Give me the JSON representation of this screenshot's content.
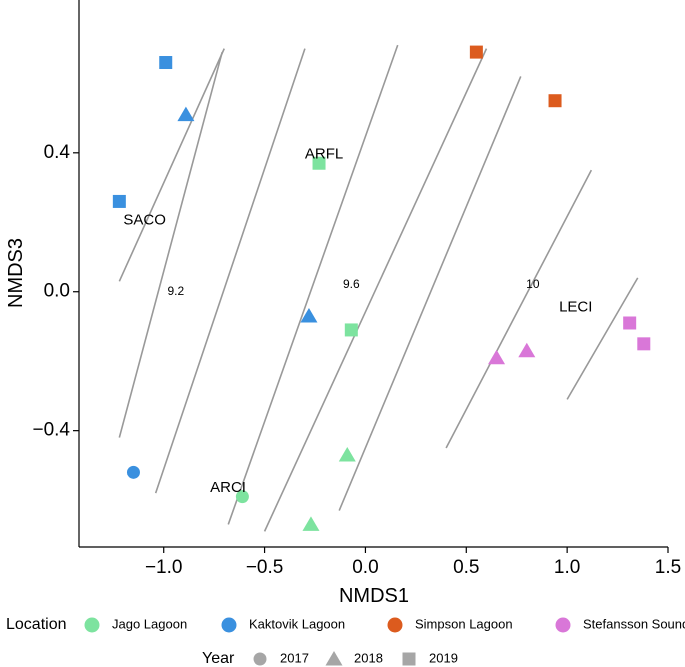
{
  "chart_data": {
    "type": "scatter",
    "xlabel": "NMDS1",
    "ylabel": "NMDS3",
    "xlim": [
      -1.42,
      1.5
    ],
    "ylim": [
      -0.735,
      0.84
    ],
    "x_ticks": [
      -1.0,
      -0.5,
      0.0,
      0.5,
      1.0,
      1.5
    ],
    "x_tick_labels": [
      "−1.0",
      "−0.5",
      "0.0",
      "0.5",
      "1.0",
      "1.5"
    ],
    "y_ticks": [
      0.4,
      0.0,
      -0.4
    ],
    "y_tick_labels": [
      "0.4",
      "0.0",
      "−0.4"
    ],
    "grid": false,
    "colors": {
      "Jago Lagoon": "#7de39f",
      "Kaktovik Lagoon": "#3a90df",
      "Simpson Lagoon": "#dc5b1e",
      "Stefansson Sound": "#d977d8",
      "contour": "#999999",
      "neutral": "#a6a6a6"
    },
    "points": [
      {
        "location": "Kaktovik Lagoon",
        "year": "2019",
        "x": -0.99,
        "y": 0.66
      },
      {
        "location": "Kaktovik Lagoon",
        "year": "2018",
        "x": -0.89,
        "y": 0.51
      },
      {
        "location": "Kaktovik Lagoon",
        "year": "2019",
        "x": -1.22,
        "y": 0.26
      },
      {
        "location": "Kaktovik Lagoon",
        "year": "2018",
        "x": -0.28,
        "y": -0.07
      },
      {
        "location": "Kaktovik Lagoon",
        "year": "2017",
        "x": -1.15,
        "y": -0.52
      },
      {
        "location": "Jago Lagoon",
        "year": "2019",
        "x": -0.23,
        "y": 0.37
      },
      {
        "location": "Jago Lagoon",
        "year": "2019",
        "x": -0.07,
        "y": -0.11
      },
      {
        "location": "Jago Lagoon",
        "year": "2018",
        "x": -0.09,
        "y": -0.47
      },
      {
        "location": "Jago Lagoon",
        "year": "2017",
        "x": -0.61,
        "y": -0.59
      },
      {
        "location": "Jago Lagoon",
        "year": "2018",
        "x": -0.27,
        "y": -0.67
      },
      {
        "location": "Simpson Lagoon",
        "year": "2019",
        "x": 0.55,
        "y": 0.69
      },
      {
        "location": "Simpson Lagoon",
        "year": "2019",
        "x": 0.94,
        "y": 0.55
      },
      {
        "location": "Stefansson Sound",
        "year": "2019",
        "x": 1.31,
        "y": -0.09
      },
      {
        "location": "Stefansson Sound",
        "year": "2019",
        "x": 1.38,
        "y": -0.15
      },
      {
        "location": "Stefansson Sound",
        "year": "2018",
        "x": 0.65,
        "y": -0.19
      },
      {
        "location": "Stefansson Sound",
        "year": "2018",
        "x": 0.8,
        "y": -0.17
      }
    ],
    "site_labels": [
      {
        "text": "SACO",
        "x": -1.2,
        "y": 0.205
      },
      {
        "text": "ARFL",
        "x": -0.3,
        "y": 0.395
      },
      {
        "text": "ARCI",
        "x": -0.77,
        "y": -0.565
      },
      {
        "text": "LECI",
        "x": 0.96,
        "y": -0.045
      }
    ],
    "contours": [
      {
        "x1": -1.22,
        "y1": -0.42,
        "x2": -0.71,
        "y2": 0.69
      },
      {
        "x1": -1.22,
        "y1": 0.03,
        "x2": -0.7,
        "y2": 0.7
      },
      {
        "x1": -1.04,
        "y1": -0.58,
        "x2": -0.3,
        "y2": 0.7
      },
      {
        "x1": -0.68,
        "y1": -0.67,
        "x2": 0.16,
        "y2": 0.71
      },
      {
        "x1": -0.5,
        "y1": -0.69,
        "x2": 0.6,
        "y2": 0.7
      },
      {
        "x1": -0.13,
        "y1": -0.63,
        "x2": 0.77,
        "y2": 0.62
      },
      {
        "x1": 0.4,
        "y1": -0.45,
        "x2": 1.12,
        "y2": 0.35
      },
      {
        "x1": 1.0,
        "y1": -0.31,
        "x2": 1.35,
        "y2": 0.04
      }
    ],
    "contour_labels": [
      {
        "text": "9.2",
        "x": -0.94,
        "y": 0.0
      },
      {
        "text": "9.6",
        "x": -0.07,
        "y": 0.02
      },
      {
        "text": "10",
        "x": 0.83,
        "y": 0.02
      }
    ],
    "legend": {
      "location_title": "Location",
      "locations": [
        "Jago Lagoon",
        "Kaktovik Lagoon",
        "Simpson Lagoon",
        "Stefansson Sound"
      ],
      "year_title": "Year",
      "years": [
        {
          "label": "2017",
          "shape": "circle"
        },
        {
          "label": "2018",
          "shape": "triangle"
        },
        {
          "label": "2019",
          "shape": "square"
        }
      ]
    }
  }
}
